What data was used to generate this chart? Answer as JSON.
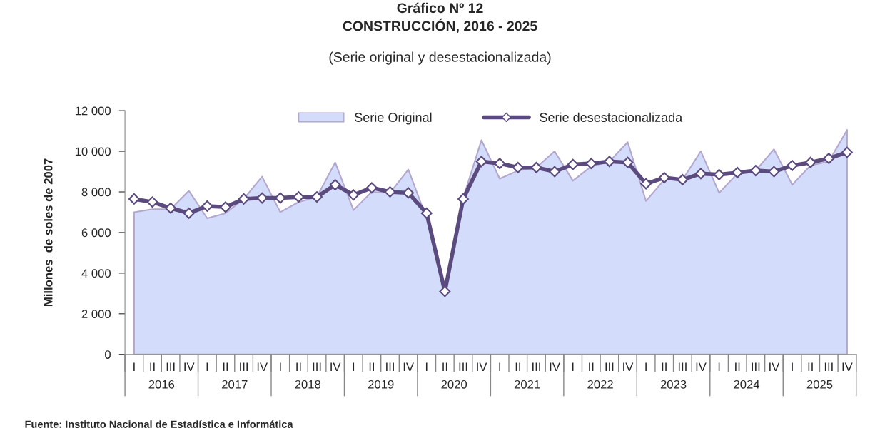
{
  "chart_data": {
    "type": "line",
    "title": "Gráfico Nº 12\nCONSTRUCCIÓN, 2016 - 2025",
    "subtitle": "(Serie original y desestacionalizada)",
    "ylabel": "Millones  de soles de 2007",
    "categories": [
      "I",
      "II",
      "III",
      "IV",
      "I",
      "II",
      "III",
      "IV",
      "I",
      "II",
      "III",
      "IV",
      "I",
      "II",
      "III",
      "IV",
      "I",
      "II",
      "III",
      "IV",
      "I",
      "II",
      "III",
      "IV",
      "I",
      "II",
      "III",
      "IV",
      "I",
      "II",
      "III",
      "IV",
      "I",
      "II",
      "III",
      "IV",
      "I",
      "II",
      "III",
      "IV"
    ],
    "series": [
      {
        "name": "Serie Original",
        "type": "area",
        "color": "#d3ddfb",
        "values": [
          7000,
          7150,
          7150,
          8050,
          6700,
          6950,
          7650,
          8750,
          7000,
          7500,
          7750,
          9450,
          7100,
          8000,
          7950,
          9100,
          6700,
          3200,
          7700,
          10550,
          8650,
          9050,
          9200,
          10000,
          8550,
          9250,
          9500,
          10450,
          7550,
          8600,
          8600,
          10000,
          7950,
          8900,
          9050,
          10100,
          8350,
          9300,
          9500,
          11050
        ]
      },
      {
        "name": "Serie desestacionalizada",
        "color": "#5b4a7e",
        "marker": "diamond",
        "values": [
          7650,
          7500,
          7200,
          6950,
          7300,
          7250,
          7650,
          7700,
          7700,
          7750,
          7750,
          8350,
          7850,
          8200,
          8000,
          7950,
          6950,
          3100,
          7650,
          9500,
          9400,
          9200,
          9200,
          9000,
          9350,
          9400,
          9500,
          9450,
          8400,
          8700,
          8600,
          8900,
          8850,
          8950,
          9050,
          9000,
          9300,
          9450,
          9650,
          9950
        ]
      }
    ],
    "ylim": [
      0,
      12000
    ],
    "yticks": [
      0,
      {
        "value": 2000,
        "label": "2 000"
      },
      {
        "value": 4000,
        "label": "4 000"
      },
      {
        "value": 6000,
        "label": "6 000"
      },
      {
        "value": 8000,
        "label": "8 000"
      },
      {
        "value": 10000,
        "label": "10 000"
      },
      {
        "value": 12000,
        "label": "12 000"
      }
    ],
    "legend": "top",
    "grid": false,
    "annotations": [
      "2016",
      "2017",
      "2018",
      "2019",
      "2020",
      "2021",
      "2022",
      "2023",
      "2024",
      "2025",
      "Fuente: Instituto Nacional de Estadística e Informática"
    ]
  }
}
